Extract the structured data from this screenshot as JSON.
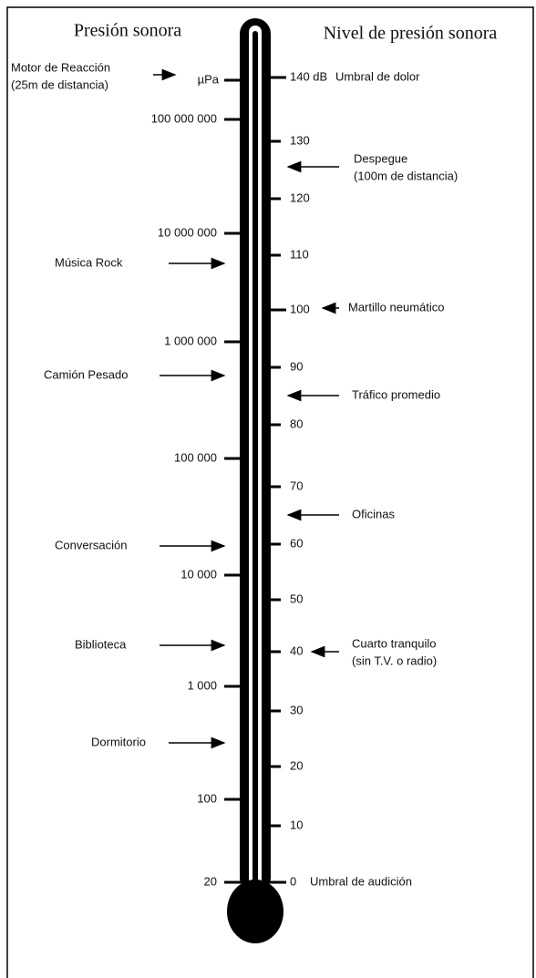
{
  "titles": {
    "left": "Presión sonora",
    "right": "Nivel de presión sonora"
  },
  "left_scale": [
    "µPa",
    "100 000 000",
    "10 000 000",
    "1 000 000",
    "100 000",
    "10 000",
    "1 000",
    "100",
    "20"
  ],
  "right_scale": [
    "140 dB",
    "130",
    "120",
    "110",
    "100",
    "90",
    "80",
    "70",
    "60",
    "50",
    "40",
    "30",
    "20",
    "10",
    "0"
  ],
  "right_scale_notes": [
    "Umbral de dolor",
    "Umbral de audición"
  ],
  "left_annotations": [
    {
      "lines": [
        "Motor de Reacción",
        "(25m de distancia)"
      ]
    },
    {
      "lines": [
        "Música Rock"
      ]
    },
    {
      "lines": [
        "Camión Pesado"
      ]
    },
    {
      "lines": [
        "Conversación"
      ]
    },
    {
      "lines": [
        "Biblioteca"
      ]
    },
    {
      "lines": [
        "Dormitorio"
      ]
    }
  ],
  "right_annotations": [
    {
      "lines": [
        "Despegue",
        "(100m de distancia)"
      ]
    },
    {
      "lines": [
        "Martillo neumático"
      ]
    },
    {
      "lines": [
        "Tráfico promedio"
      ]
    },
    {
      "lines": [
        "Oficinas"
      ]
    },
    {
      "lines": [
        "Cuarto tranquilo",
        "(sin T.V. o radio)"
      ]
    }
  ]
}
